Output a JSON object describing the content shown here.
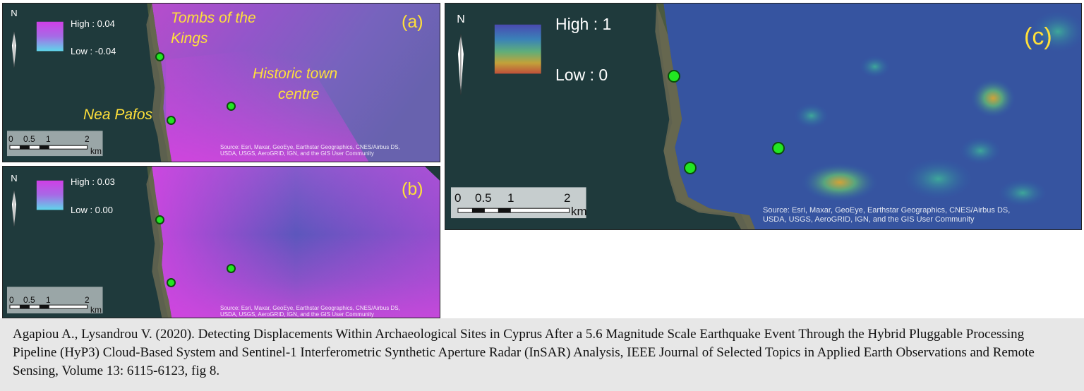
{
  "panels": {
    "a": {
      "letter": "(a)",
      "legend": {
        "high": "High : 0.04",
        "low": "Low : -0.04"
      },
      "labels": {
        "tombs_line1": "Tombs of the",
        "tombs_line2": "Kings",
        "historic_line1": "Historic town",
        "historic_line2": "centre",
        "nea": "Nea Pafos"
      },
      "scale": {
        "t0": "0",
        "t1": "0.5",
        "t2": "1",
        "t3": "2",
        "unit": "km"
      },
      "north": "N",
      "source_line1": "Source: Esri, Maxar, GeoEye, Earthstar Geographics, CNES/Airbus DS,",
      "source_line2": "USDA, USGS, AeroGRID, IGN, and the GIS User Community"
    },
    "b": {
      "letter": "(b)",
      "legend": {
        "high": "High : 0.03",
        "low": "Low : 0.00"
      },
      "scale": {
        "t0": "0",
        "t1": "0.5",
        "t2": "1",
        "t3": "2",
        "unit": "km"
      },
      "north": "N",
      "source_line1": "Source: Esri, Maxar, GeoEye, Earthstar Geographics, CNES/Airbus DS,",
      "source_line2": "USDA, USGS, AeroGRID, IGN, and the GIS User Community"
    },
    "c": {
      "letter": "(c)",
      "legend": {
        "high": "High : 1",
        "low": "Low : 0"
      },
      "scale": {
        "t0": "0",
        "t1": "0.5",
        "t2": "1",
        "t3": "2",
        "unit": "km"
      },
      "north": "N",
      "source_line1": "Source: Esri, Maxar, GeoEye, Earthstar Geographics, CNES/Airbus DS,",
      "source_line2": "USDA, USGS, AeroGRID, IGN, and the GIS User Community"
    }
  },
  "caption": "Agapiou A., Lysandrou V. (2020). Detecting Displacements Within Archaeological Sites in Cyprus After a 5.6 Magnitude Scale Earthquake Event Through the Hybrid Pluggable Processing Pipeline (HyP3) Cloud-Based System and Sentinel-1 Interferometric Synthetic Aperture Radar (InSAR) Analysis, IEEE Journal of Selected Topics in Applied Earth Observations and Remote Sensing, Volume 13: 6115-6123, fig 8.",
  "colors": {
    "sea": "#1f3a3c",
    "land": "#4b5a40",
    "label": "#ffe03a",
    "site_marker": "#22e622"
  }
}
